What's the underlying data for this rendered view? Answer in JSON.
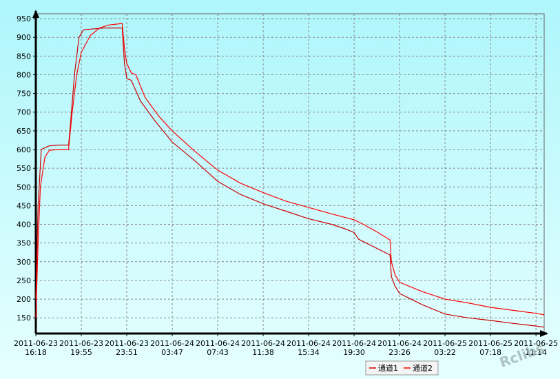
{
  "chart_data": {
    "type": "line",
    "ylim": [
      108,
      963
    ],
    "yticks": [
      150,
      200,
      250,
      300,
      350,
      400,
      450,
      500,
      550,
      600,
      650,
      700,
      750,
      800,
      850,
      900,
      950
    ],
    "xlim": [
      0,
      11.18
    ],
    "xticks": [
      {
        "value": 0,
        "label": "2011-06-23 16:18"
      },
      {
        "value": 1,
        "label": "2011-06-23 19:55"
      },
      {
        "value": 2,
        "label": "2011-06-23 23:51"
      },
      {
        "value": 3,
        "label": "2011-06-24 03:47"
      },
      {
        "value": 4,
        "label": "2011-06-24 07:43"
      },
      {
        "value": 5,
        "label": "2011-06-24 11:38"
      },
      {
        "value": 6,
        "label": "2011-06-24 15:34"
      },
      {
        "value": 7,
        "label": "2011-06-24 19:30"
      },
      {
        "value": 8,
        "label": "2011-06-24 23:26"
      },
      {
        "value": 9,
        "label": "2011-06-25 03:22"
      },
      {
        "value": 10,
        "label": "2011-06-25 07:18"
      },
      {
        "value": 11,
        "label": "2011-06-25 11:14"
      }
    ],
    "grid": true,
    "legend": "bottom",
    "watermark": "Rclibs",
    "series": [
      {
        "name": "通道1",
        "color": "#cc0000",
        "x": [
          0,
          0.05,
          0.12,
          0.2,
          0.3,
          0.5,
          0.72,
          0.75,
          0.85,
          0.95,
          1.05,
          1.2,
          1.5,
          1.9,
          1.95,
          2.0,
          2.1,
          2.3,
          2.6,
          3,
          3.5,
          4,
          4.5,
          5,
          5.5,
          6,
          6.5,
          6.8,
          7,
          7.1,
          7.3,
          7.79,
          7.82,
          7.9,
          8,
          8.5,
          9,
          9.5,
          10,
          10.5,
          11,
          11.18
        ],
        "values": [
          200,
          450,
          600,
          605,
          610,
          612,
          612,
          650,
          800,
          900,
          920,
          922,
          925,
          925,
          830,
          790,
          785,
          730,
          680,
          620,
          570,
          515,
          480,
          455,
          435,
          415,
          400,
          388,
          378,
          360,
          348,
          318,
          260,
          235,
          215,
          185,
          160,
          150,
          143,
          135,
          128,
          125
        ]
      },
      {
        "name": "通道2",
        "color": "#ff0000",
        "x": [
          0,
          0.05,
          0.1,
          0.2,
          0.3,
          0.5,
          0.72,
          0.8,
          0.9,
          1.0,
          1.2,
          1.4,
          1.6,
          1.9,
          1.95,
          2.0,
          2.1,
          2.2,
          2.4,
          2.7,
          3,
          3.5,
          4,
          4.5,
          5,
          5.5,
          6,
          6.5,
          7,
          7.2,
          7.5,
          7.79,
          7.82,
          7.9,
          8,
          8.5,
          9,
          9.5,
          10,
          10.5,
          11,
          11.18
        ],
        "values": [
          150,
          350,
          500,
          580,
          598,
          600,
          600,
          700,
          800,
          860,
          905,
          925,
          933,
          937,
          870,
          830,
          805,
          800,
          740,
          690,
          650,
          595,
          545,
          510,
          485,
          462,
          445,
          428,
          412,
          400,
          380,
          358,
          300,
          265,
          245,
          220,
          200,
          190,
          178,
          170,
          162,
          158
        ]
      }
    ]
  }
}
